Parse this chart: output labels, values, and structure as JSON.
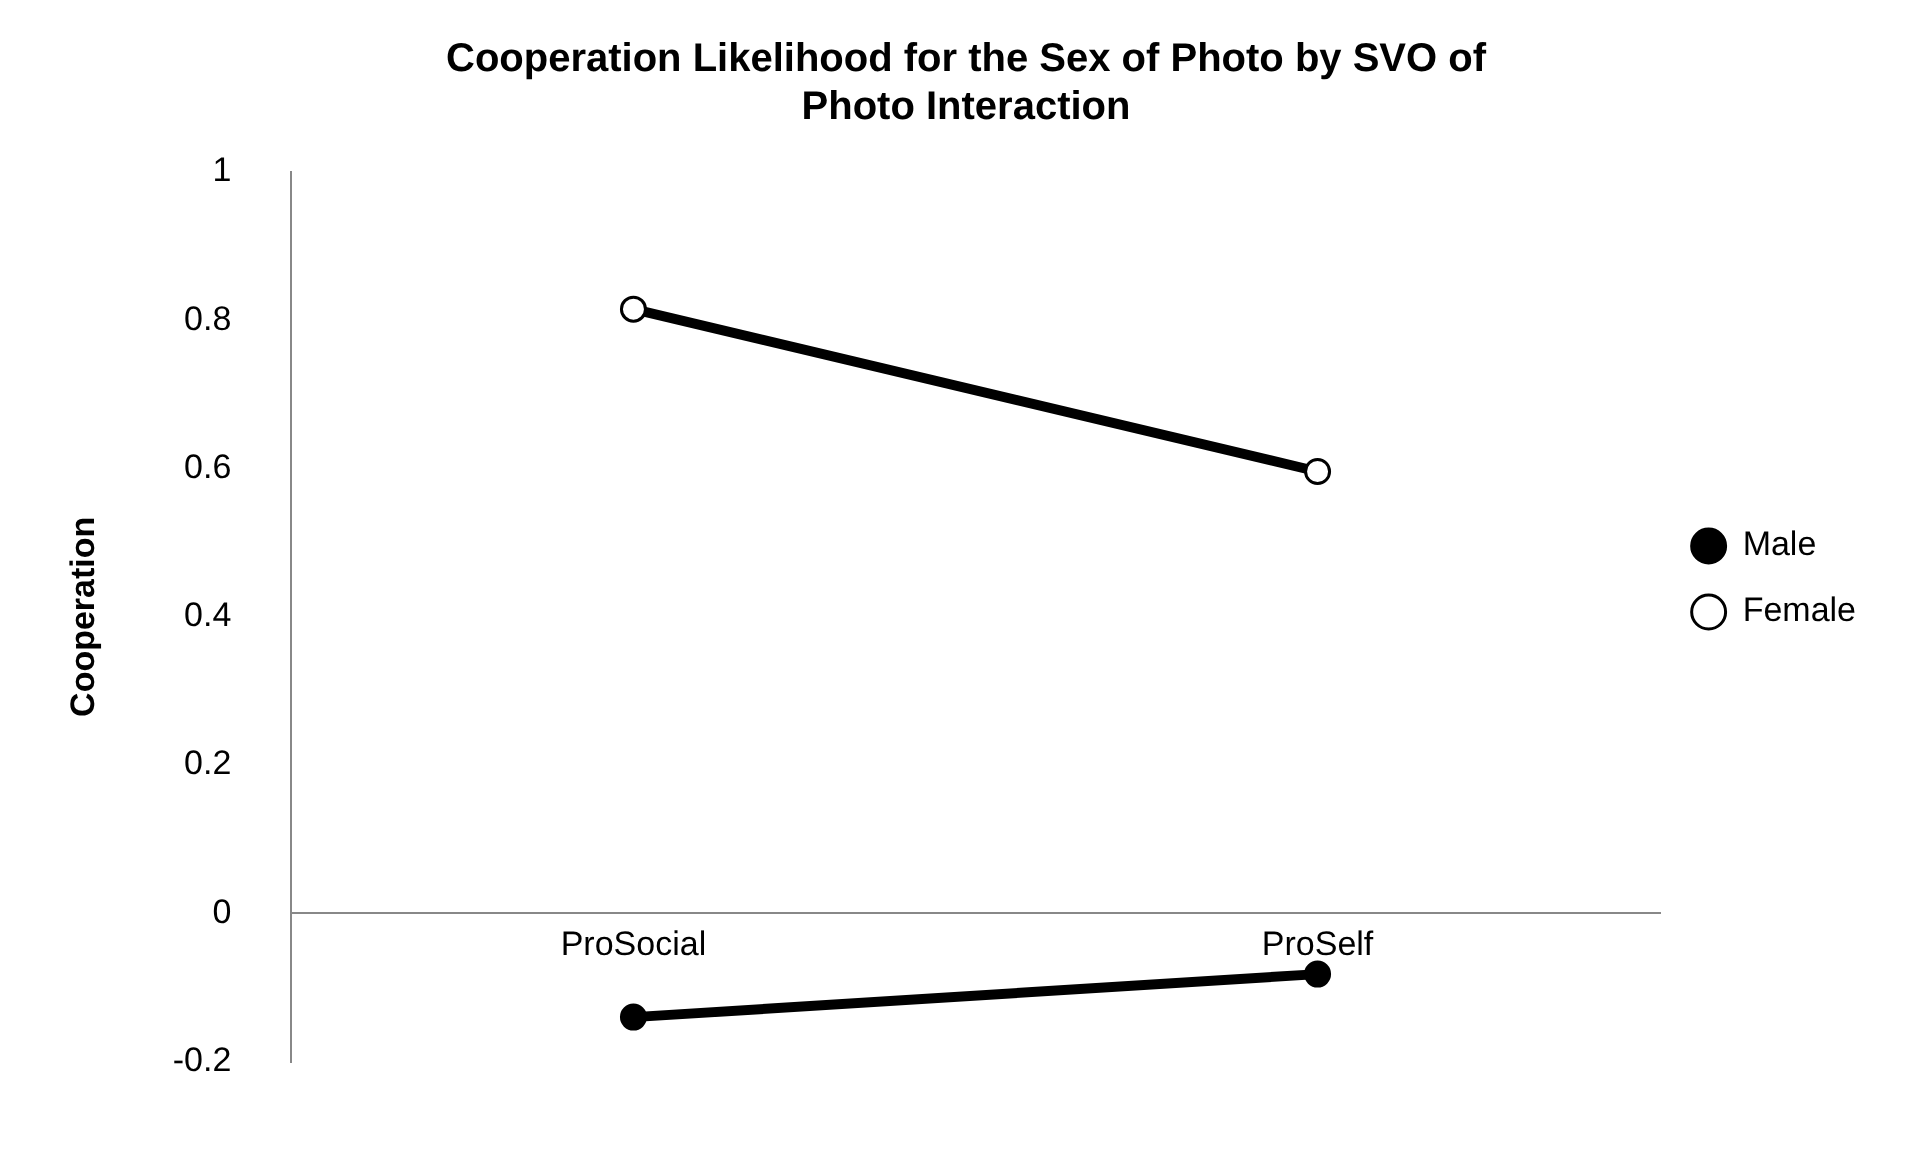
{
  "chart_data": {
    "type": "line",
    "title": "Cooperation Likelihood for the Sex of Photo by SVO of Photo Interaction",
    "ylabel": "Cooperation",
    "categories": [
      "ProSocial",
      "ProSelf"
    ],
    "series": [
      {
        "name": "Male",
        "color": "#000000",
        "values": [
          -0.14,
          -0.082
        ]
      },
      {
        "name": "Female",
        "color": "#000000",
        "colors": [
          "#ffffff",
          "#ffffff"
        ],
        "values": [
          0.815,
          0.596
        ]
      }
    ],
    "ylim": [
      -0.2,
      1
    ],
    "yticks": [
      -0.2,
      0,
      0.2,
      0.4,
      0.6,
      0.8,
      1
    ],
    "grid": false,
    "legend": "right",
    "marker": "circle",
    "line_style": "solid"
  }
}
